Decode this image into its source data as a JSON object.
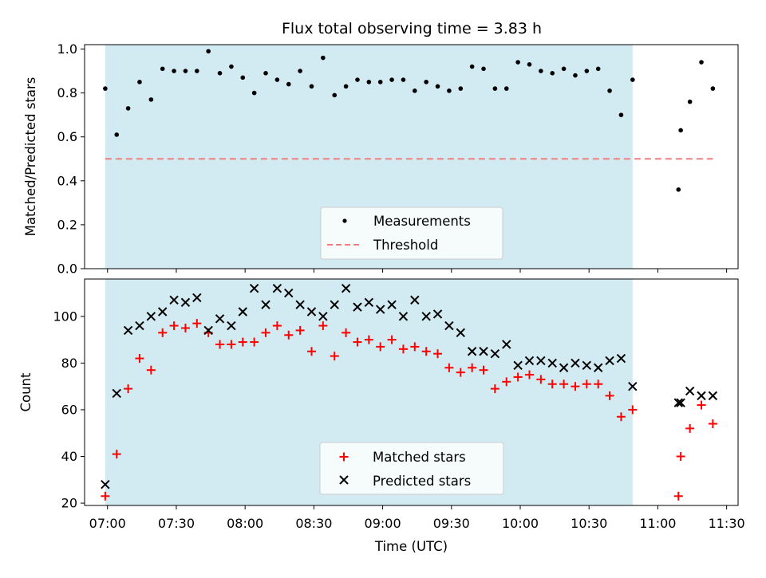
{
  "chart_data": [
    {
      "type": "scatter",
      "title": "Flux total observing time = 3.83 h",
      "ylabel": "Matched/Predicted stars",
      "ylim": [
        0,
        1.02
      ],
      "yticks": [
        "0.0",
        "0.2",
        "0.4",
        "0.6",
        "0.8",
        "1.0"
      ],
      "xlim": [
        "06:50",
        "11:35"
      ],
      "shaded_interval": [
        "06:59",
        "10:49"
      ],
      "shade_color": "#add8e6",
      "legend": {
        "position": "lower-center",
        "entries": [
          "Measurements",
          "Threshold"
        ]
      },
      "threshold": {
        "name": "Threshold",
        "value": 0.5,
        "x_range": [
          "06:59",
          "11:24"
        ],
        "color": "#f08080",
        "style": "dashed"
      },
      "series": [
        {
          "name": "Measurements",
          "marker": "dot",
          "color": "#000000",
          "x": [
            "06:59",
            "07:04",
            "07:09",
            "07:14",
            "07:19",
            "07:24",
            "07:29",
            "07:34",
            "07:39",
            "07:44",
            "07:49",
            "07:54",
            "07:59",
            "08:04",
            "08:09",
            "08:14",
            "08:19",
            "08:24",
            "08:29",
            "08:34",
            "08:39",
            "08:44",
            "08:49",
            "08:54",
            "08:59",
            "09:04",
            "09:09",
            "09:14",
            "09:19",
            "09:24",
            "09:29",
            "09:34",
            "09:39",
            "09:44",
            "09:49",
            "09:54",
            "09:59",
            "10:04",
            "10:09",
            "10:14",
            "10:19",
            "10:24",
            "10:29",
            "10:34",
            "10:39",
            "10:44",
            "10:49",
            "11:09",
            "11:10",
            "11:14",
            "11:19",
            "11:24"
          ],
          "y": [
            0.82,
            0.61,
            0.73,
            0.85,
            0.77,
            0.91,
            0.9,
            0.9,
            0.9,
            0.99,
            0.89,
            0.92,
            0.87,
            0.8,
            0.89,
            0.86,
            0.84,
            0.9,
            0.83,
            0.96,
            0.79,
            0.83,
            0.86,
            0.85,
            0.85,
            0.86,
            0.86,
            0.81,
            0.85,
            0.83,
            0.81,
            0.82,
            0.92,
            0.91,
            0.82,
            0.82,
            0.94,
            0.93,
            0.9,
            0.89,
            0.91,
            0.88,
            0.9,
            0.91,
            0.81,
            0.7,
            0.86,
            0.36,
            0.63,
            0.76,
            0.94,
            0.82
          ]
        }
      ]
    },
    {
      "type": "scatter",
      "xlabel": "Time (UTC)",
      "ylabel": "Count",
      "ylim": [
        19,
        116
      ],
      "yticks": [
        "20",
        "40",
        "60",
        "80",
        "100"
      ],
      "xlim": [
        "06:50",
        "11:35"
      ],
      "xticks": [
        "07:00",
        "07:30",
        "08:00",
        "08:30",
        "09:00",
        "09:30",
        "10:00",
        "10:30",
        "11:00",
        "11:30"
      ],
      "shaded_interval": [
        "06:59",
        "10:49"
      ],
      "shade_color": "#add8e6",
      "legend": {
        "position": "lower-center",
        "entries": [
          "Matched stars",
          "Predicted stars"
        ]
      },
      "series": [
        {
          "name": "Matched stars",
          "marker": "plus",
          "color": "#ff0000",
          "x": [
            "06:59",
            "07:04",
            "07:09",
            "07:14",
            "07:19",
            "07:24",
            "07:29",
            "07:34",
            "07:39",
            "07:44",
            "07:49",
            "07:54",
            "07:59",
            "08:04",
            "08:09",
            "08:14",
            "08:19",
            "08:24",
            "08:29",
            "08:34",
            "08:39",
            "08:44",
            "08:49",
            "08:54",
            "08:59",
            "09:04",
            "09:09",
            "09:14",
            "09:19",
            "09:24",
            "09:29",
            "09:34",
            "09:39",
            "09:44",
            "09:49",
            "09:54",
            "09:59",
            "10:04",
            "10:09",
            "10:14",
            "10:19",
            "10:24",
            "10:29",
            "10:34",
            "10:39",
            "10:44",
            "10:49",
            "11:09",
            "11:10",
            "11:14",
            "11:19",
            "11:24"
          ],
          "y": [
            23,
            41,
            69,
            82,
            77,
            93,
            96,
            95,
            97,
            93,
            88,
            88,
            89,
            89,
            93,
            96,
            92,
            94,
            85,
            96,
            83,
            93,
            89,
            90,
            87,
            90,
            86,
            87,
            85,
            84,
            78,
            76,
            78,
            77,
            69,
            72,
            74,
            75,
            73,
            71,
            71,
            70,
            71,
            71,
            66,
            57,
            60,
            23,
            40,
            52,
            62,
            54
          ]
        },
        {
          "name": "Predicted stars",
          "marker": "x",
          "color": "#000000",
          "x": [
            "06:59",
            "07:04",
            "07:09",
            "07:14",
            "07:19",
            "07:24",
            "07:29",
            "07:34",
            "07:39",
            "07:44",
            "07:49",
            "07:54",
            "07:59",
            "08:04",
            "08:09",
            "08:14",
            "08:19",
            "08:24",
            "08:29",
            "08:34",
            "08:39",
            "08:44",
            "08:49",
            "08:54",
            "08:59",
            "09:04",
            "09:09",
            "09:14",
            "09:19",
            "09:24",
            "09:29",
            "09:34",
            "09:39",
            "09:44",
            "09:49",
            "09:54",
            "09:59",
            "10:04",
            "10:09",
            "10:14",
            "10:19",
            "10:24",
            "10:29",
            "10:34",
            "10:39",
            "10:44",
            "10:49",
            "11:09",
            "11:10",
            "11:14",
            "11:19",
            "11:24"
          ],
          "y": [
            28,
            67,
            94,
            96,
            100,
            102,
            107,
            106,
            108,
            94,
            99,
            96,
            102,
            112,
            105,
            112,
            110,
            105,
            102,
            100,
            105,
            112,
            104,
            106,
            103,
            105,
            100,
            107,
            100,
            101,
            96,
            93,
            85,
            85,
            84,
            88,
            79,
            81,
            81,
            80,
            78,
            80,
            79,
            78,
            81,
            82,
            70,
            63,
            63,
            68,
            66,
            66
          ]
        }
      ]
    }
  ]
}
